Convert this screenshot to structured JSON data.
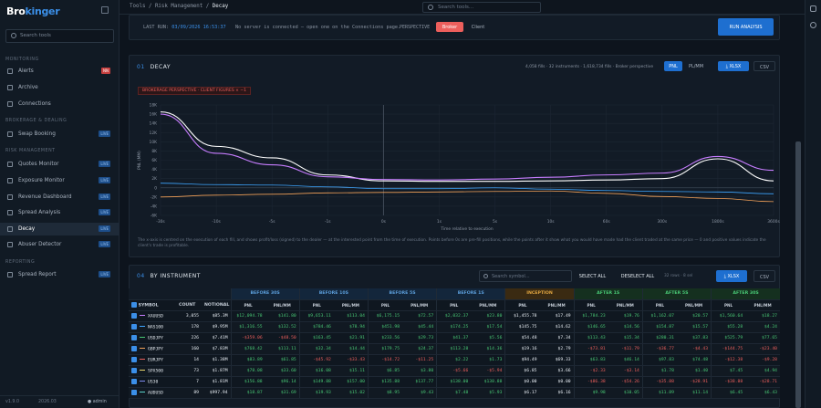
{
  "app": {
    "logo_a": "Bro",
    "logo_b": "kinger",
    "search_placeholder": "Search tools"
  },
  "sidebar": {
    "sections": {
      "monitoring": "MONITORING",
      "brokerage": "BROKERAGE & DEALING",
      "risk": "RISK MANAGEMENT",
      "reporting": "REPORTING"
    },
    "items": [
      {
        "label": "Alerts",
        "badge": "NN"
      },
      {
        "label": "Archive",
        "badge": ""
      },
      {
        "label": "Connections",
        "badge": ""
      },
      {
        "label": "Swap Booking",
        "badge": "LIVE"
      },
      {
        "label": "Quotes Monitor",
        "badge": "LIVE"
      },
      {
        "label": "Exposure Monitor",
        "badge": "LIVE"
      },
      {
        "label": "Revenue Dashboard",
        "badge": "LIVE"
      },
      {
        "label": "Spread Analysis",
        "badge": "LIVE"
      },
      {
        "label": "Decay",
        "badge": "LIVE"
      },
      {
        "label": "Abuser Detector",
        "badge": "LIVE"
      },
      {
        "label": "Spread Report",
        "badge": "LIVE"
      }
    ],
    "footer": {
      "version": "v1.9.0",
      "year": "2026.03",
      "user": "admin"
    }
  },
  "topbar": {
    "crumb1": "Tools",
    "crumb2": "Risk Management",
    "crumb3": "Decay",
    "search_placeholder": "Search tools..."
  },
  "runbar": {
    "last_run_label": "LAST RUN:",
    "last_run_value": "03/09/2026 16:53:37",
    "msg": "No server is connected — open one on the Connections page.",
    "perspective_label": "PERSPECTIVE",
    "opt_broker": "Broker",
    "opt_client": "Client",
    "run_button": "RUN ANALYSIS"
  },
  "decay": {
    "num": "01",
    "title": "DECAY",
    "summary": "4,058 fills · 32 instruments · 1,618,734 fills · Broker perspective",
    "pnl_btn": "PNL",
    "pnl_mm_btn": "PL/MM",
    "xlsx_btn": "XLSX",
    "csv_btn": "CSV",
    "perspective_tag": "BROKERAGE PERSPECTIVE · CLIENT FIGURES × −1",
    "ylabel": "PNL (MM)",
    "xlabel": "Time relative to execution",
    "note": "The x-axis is centred on the execution of each fill, and shows profit/loss (signed) to the dealer — at the interested point from the time of execution. Points before 0s are pre-fill positions, while the points after it show what you would have made had the client traded at the same price — 0 and positive values indicate the client's trade is profitable."
  },
  "chart_data": {
    "type": "line",
    "x": [
      "-30s",
      "-10s",
      "-5s",
      "-1s",
      "0s",
      "1s",
      "5s",
      "10s",
      "60s",
      "300s",
      "1800s",
      "3600s"
    ],
    "y_ticks": [
      "18K",
      "16K",
      "14K",
      "12K",
      "10K",
      "8K",
      "6K",
      "4K",
      "2K",
      "0",
      "-2K",
      "-4K",
      "-6K"
    ],
    "ylim": [
      -6000,
      18000
    ],
    "series": [
      {
        "color": "#ffffff",
        "values": [
          16500,
          9000,
          6500,
          2800,
          1500,
          1400,
          1400,
          1500,
          1700,
          2000,
          6300,
          1500
        ]
      },
      {
        "color": "#c77dff",
        "values": [
          16000,
          7500,
          5000,
          2400,
          1800,
          1700,
          1900,
          2300,
          2800,
          3200,
          6800,
          3800
        ]
      },
      {
        "color": "#3ea6ff",
        "values": [
          1000,
          700,
          600,
          200,
          -200,
          -200,
          0,
          -300,
          -600,
          -800,
          -900,
          -1300
        ]
      },
      {
        "color": "#f4a259",
        "values": [
          -2000,
          -1600,
          -1400,
          -1100,
          -1000,
          -900,
          -800,
          -700,
          -1200,
          -1900,
          -2300,
          -3000
        ]
      }
    ]
  },
  "instruments": {
    "num": "04",
    "title": "BY INSTRUMENT",
    "search_placeholder": "Search symbol...",
    "select_all": "SELECT ALL",
    "deselect_all": "DESELECT ALL",
    "selected_text": "32 rows · 8 sel",
    "xlsx": "XLSX",
    "csv": "CSV",
    "groups": [
      "BEFORE 30S",
      "BEFORE 10S",
      "BEFORE 5S",
      "BEFORE 1S",
      "INCEPTION",
      "AFTER 1S",
      "AFTER 5S",
      "AFTER 30S"
    ],
    "sub": [
      "PNL",
      "PNL/MM"
    ],
    "cols": {
      "symbol": "SYMBOL",
      "count": "COUNT",
      "notional": "NOTIONAL"
    },
    "rows": [
      {
        "sym": "XAUUSD",
        "color": "#c77dff",
        "count": "3,055",
        "notional": "$85.3M",
        "v": [
          "$12,094.78",
          "$141.80",
          "$9,653.11",
          "$113.04",
          "$6,175.15",
          "$72.57",
          "$2,032.37",
          "$23.80",
          "$1,455.78",
          "$17.49",
          "$1,784.23",
          "$19.76",
          "$1,162.07",
          "$20.57",
          "$1,560.64",
          "$18.27"
        ]
      },
      {
        "sym": "NAS100",
        "color": "#3ea6ff",
        "count": "178",
        "notional": "$9.95M",
        "v": [
          "$1,316.55",
          "$132.52",
          "$784.46",
          "$78.94",
          "$451.98",
          "$45.44",
          "$174.25",
          "$17.54",
          "$145.75",
          "$14.62",
          "$146.65",
          "$14.56",
          "$154.87",
          "$15.57",
          "$55.28",
          "$4.24"
        ]
      },
      {
        "sym": "USDJPY",
        "color": "#48c774",
        "count": "226",
        "notional": "$7.41M",
        "v": [
          "-$359.06",
          "-$48.50",
          "$163.45",
          "$21.91",
          "$233.56",
          "$29.73",
          "$41.37",
          "$5.56",
          "$54.48",
          "$7.34",
          "$113.43",
          "$15.34",
          "$280.31",
          "$37.83",
          "$525.79",
          "$77.65"
        ]
      },
      {
        "sym": "GBPJPY",
        "color": "#f4a259",
        "count": "160",
        "notional": "$7.83M",
        "v": [
          "$768.42",
          "$113.11",
          "$32.34",
          "$14.44",
          "$179.75",
          "$24.37",
          "$113.28",
          "$14.36",
          "$19.16",
          "$2.79",
          "-$73.81",
          "-$11.79",
          "-$36.77",
          "-$4.43",
          "-$144.75",
          "-$23.40"
        ]
      },
      {
        "sym": "EURJPY",
        "color": "#ec5f5c",
        "count": "14",
        "notional": "$1.38M",
        "v": [
          "$83.89",
          "$61.85",
          "-$45.92",
          "-$33.43",
          "-$14.72",
          "-$11.25",
          "$2.22",
          "$1.73",
          "$94.49",
          "$69.33",
          "$63.83",
          "$46.14",
          "$97.83",
          "$74.48",
          "-$12.38",
          "-$9.28"
        ]
      },
      {
        "sym": "SPX500",
        "color": "#e9d66b",
        "count": "73",
        "notional": "$1.87M",
        "v": [
          "$78.08",
          "$33.60",
          "$16.08",
          "$15.11",
          "$6.85",
          "$3.80",
          "-$5.66",
          "-$5.94",
          "$6.85",
          "$3.66",
          "-$2.33",
          "-$3.14",
          "$1.78",
          "$1.40",
          "$7.45",
          "$4.94"
        ]
      },
      {
        "sym": "US30",
        "color": "#7d8cf0",
        "count": "7",
        "notional": "$1.81M",
        "v": [
          "$156.88",
          "$96.14",
          "$149.88",
          "$157.00",
          "$135.88",
          "$137.77",
          "$138.00",
          "$138.88",
          "$0.00",
          "$0.00",
          "-$86.38",
          "-$54.26",
          "-$35.88",
          "-$28.91",
          "-$38.88",
          "-$28.71"
        ]
      },
      {
        "sym": "AUDUSD",
        "color": "#5ad1c9",
        "count": "89",
        "notional": "$997.94",
        "v": [
          "$18.87",
          "$31.69",
          "$19.93",
          "$15.02",
          "$8.95",
          "$9.43",
          "$7.48",
          "$5.93",
          "$6.17",
          "$6.16",
          "$9.98",
          "$10.05",
          "$11.89",
          "$11.14",
          "$6.45",
          "$6.43"
        ]
      }
    ]
  }
}
